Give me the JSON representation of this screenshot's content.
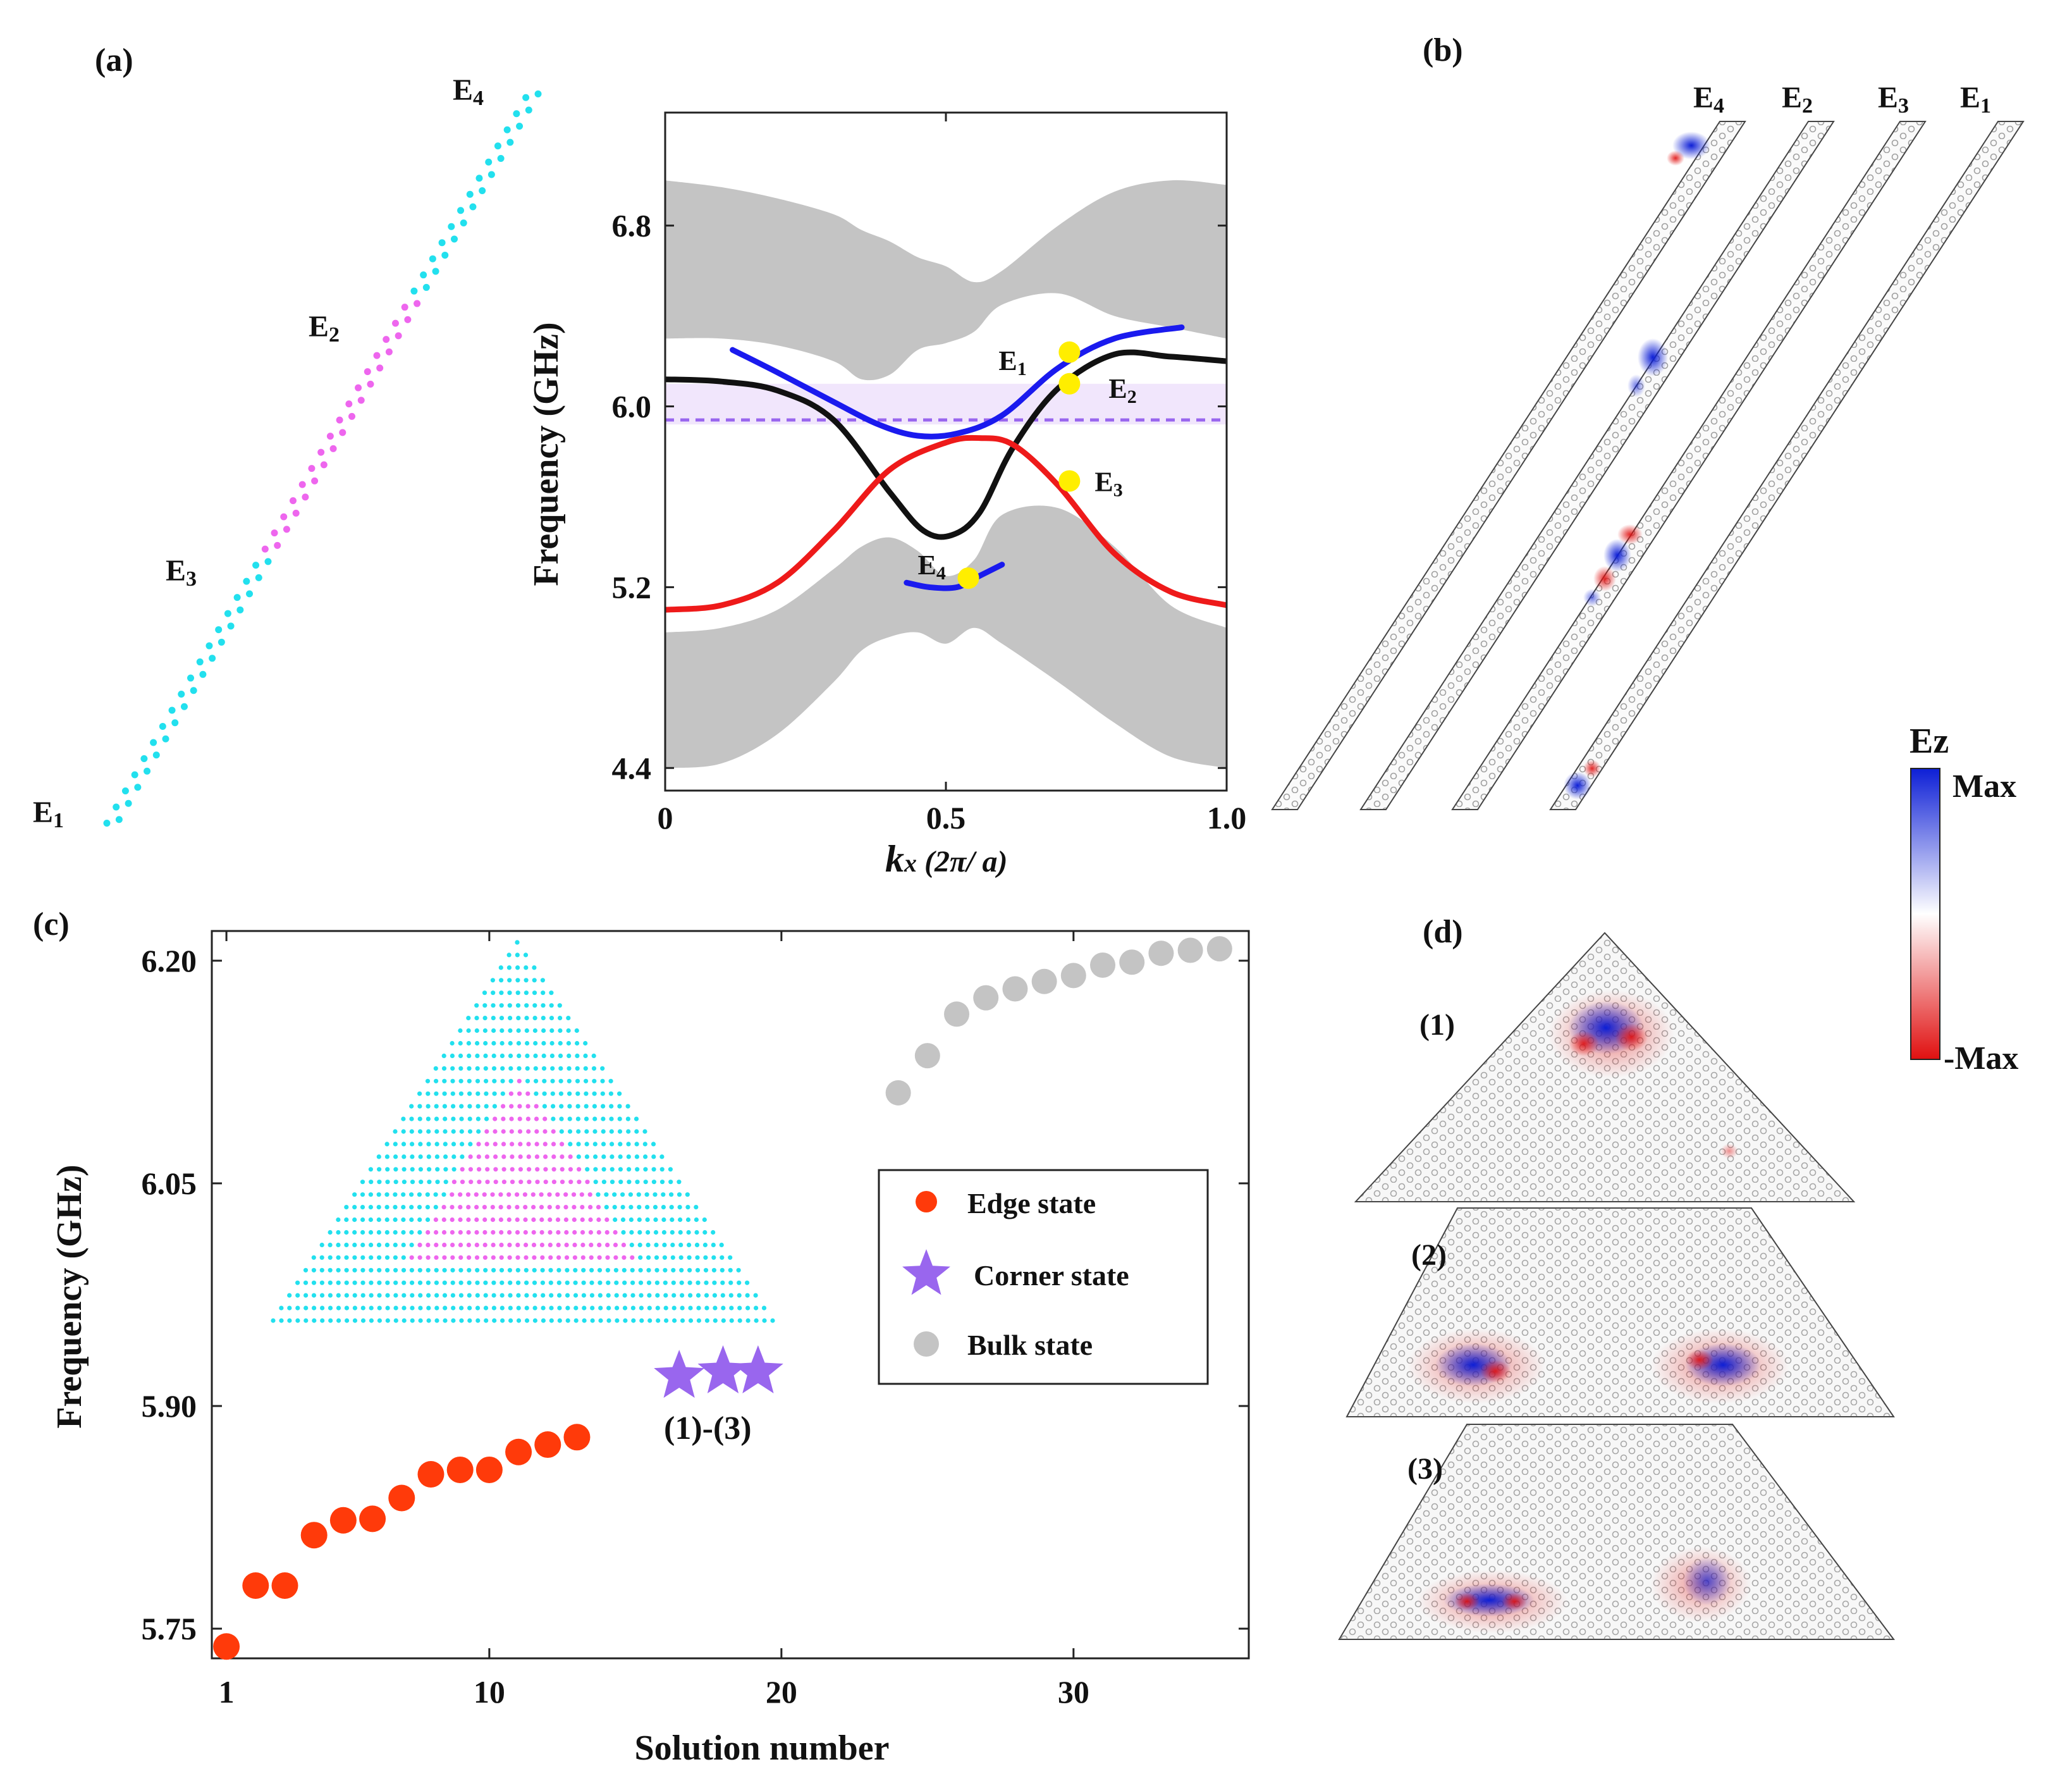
{
  "panels": {
    "a": "(a)",
    "b": "(b)",
    "c": "(c)",
    "d": "(d)"
  },
  "colors": {
    "cyan": "#22e0ee",
    "magenta": "#ee66ee",
    "blue": "#1a1aee",
    "black": "#111111",
    "red": "#ee1a1a",
    "gray": "#c4c4c4",
    "yellow": "#ffee00",
    "purple": "#9966ee",
    "orange_red": "#ff3a0a",
    "band": "#efe2fb",
    "field_blue": "#0d1fd6",
    "field_red": "#e01010"
  },
  "panel_a": {
    "ribbon_labels": [
      {
        "main": "E",
        "sub": "4"
      },
      {
        "main": "E",
        "sub": "2"
      },
      {
        "main": "E",
        "sub": "3"
      },
      {
        "main": "E",
        "sub": "1"
      }
    ]
  },
  "chart_data": [
    {
      "type": "line",
      "title": "",
      "xlabel": {
        "var": "k",
        "sub": "x",
        "unit": " (2π/ a)"
      },
      "ylabel": "Frequency (GHz)",
      "xlim": [
        0,
        1.0
      ],
      "ylim": [
        4.3,
        7.3
      ],
      "xticks": [
        "0",
        "0.5",
        "1.0"
      ],
      "xtick_values": [
        0,
        0.5,
        1.0
      ],
      "yticks": [
        "4.4",
        "5.2",
        "6.0",
        "6.8"
      ],
      "ytick_values": [
        4.4,
        5.2,
        6.0,
        6.8
      ],
      "bulk_bands": [
        {
          "name": "upper bulk",
          "x": [
            0,
            0.1,
            0.2,
            0.3,
            0.35,
            0.4,
            0.45,
            0.5,
            0.55,
            0.6,
            0.7,
            0.8,
            0.9,
            1.0
          ],
          "lower": [
            6.3,
            6.3,
            6.27,
            6.2,
            6.12,
            6.14,
            6.25,
            6.28,
            6.33,
            6.45,
            6.5,
            6.4,
            6.35,
            6.3
          ],
          "upper": [
            7.0,
            6.97,
            6.92,
            6.85,
            6.78,
            6.73,
            6.66,
            6.62,
            6.55,
            6.6,
            6.8,
            6.95,
            7.0,
            6.98
          ]
        },
        {
          "name": "lower bulk",
          "x": [
            0,
            0.1,
            0.2,
            0.3,
            0.35,
            0.4,
            0.45,
            0.5,
            0.55,
            0.6,
            0.7,
            0.8,
            0.9,
            1.0
          ],
          "lower": [
            4.4,
            4.42,
            4.55,
            4.78,
            4.92,
            4.98,
            5.0,
            4.95,
            5.02,
            4.95,
            4.78,
            4.6,
            4.45,
            4.4
          ],
          "upper": [
            5.0,
            5.02,
            5.1,
            5.28,
            5.38,
            5.42,
            5.36,
            5.25,
            5.32,
            5.52,
            5.55,
            5.38,
            5.12,
            5.02
          ]
        }
      ],
      "gap_band": {
        "ymin": 5.92,
        "ymax": 6.1
      },
      "dashed_line": {
        "y": 5.94
      },
      "series": [
        {
          "name": "E1 edge (blue, upper)",
          "color": "blue",
          "x": [
            0.12,
            0.2,
            0.3,
            0.38,
            0.45,
            0.52,
            0.6,
            0.7,
            0.8,
            0.92
          ],
          "y": [
            6.25,
            6.15,
            6.02,
            5.92,
            5.87,
            5.88,
            5.96,
            6.17,
            6.3,
            6.35
          ]
        },
        {
          "name": "E2 edge (black)",
          "color": "black",
          "x": [
            0,
            0.1,
            0.2,
            0.3,
            0.4,
            0.46,
            0.51,
            0.56,
            0.62,
            0.7,
            0.8,
            0.9,
            1.0
          ],
          "y": [
            6.12,
            6.11,
            6.07,
            5.94,
            5.62,
            5.45,
            5.43,
            5.53,
            5.82,
            6.08,
            6.23,
            6.22,
            6.2
          ]
        },
        {
          "name": "E3 edge (red)",
          "color": "red",
          "x": [
            0,
            0.1,
            0.2,
            0.3,
            0.4,
            0.5,
            0.56,
            0.62,
            0.7,
            0.8,
            0.9,
            1.0
          ],
          "y": [
            5.1,
            5.12,
            5.22,
            5.45,
            5.72,
            5.84,
            5.86,
            5.83,
            5.65,
            5.35,
            5.18,
            5.12
          ]
        },
        {
          "name": "E4 edge (blue, lower)",
          "color": "blue",
          "x": [
            0.43,
            0.47,
            0.52,
            0.56,
            0.6
          ],
          "y": [
            5.22,
            5.2,
            5.2,
            5.25,
            5.3
          ]
        }
      ],
      "markers": [
        {
          "label": "E",
          "sub": "1",
          "x": 0.72,
          "y": 6.24
        },
        {
          "label": "E",
          "sub": "2",
          "x": 0.72,
          "y": 6.1
        },
        {
          "label": "E",
          "sub": "3",
          "x": 0.72,
          "y": 5.67
        },
        {
          "label": "E",
          "sub": "4",
          "x": 0.54,
          "y": 5.24
        }
      ]
    },
    {
      "type": "scatter",
      "title": "",
      "xlabel": "Solution number",
      "ylabel": "Frequency (GHz)",
      "xlim": [
        0.5,
        36
      ],
      "ylim": [
        5.73,
        6.22
      ],
      "xticks": [
        "1",
        "10",
        "20",
        "30"
      ],
      "xtick_values": [
        1,
        10,
        20,
        30
      ],
      "yticks": [
        "5.75",
        "5.90",
        "6.05",
        "6.20"
      ],
      "ytick_values": [
        5.75,
        5.9,
        6.05,
        6.2
      ],
      "series": [
        {
          "name": "Edge state",
          "marker": "circle",
          "color": "orange_red",
          "x": [
            1,
            2,
            3,
            4,
            5,
            6,
            7,
            8,
            9,
            10,
            11,
            12,
            13
          ],
          "y": [
            5.738,
            5.779,
            5.779,
            5.813,
            5.823,
            5.824,
            5.838,
            5.854,
            5.857,
            5.857,
            5.869,
            5.874,
            5.879
          ]
        },
        {
          "name": "Corner state",
          "marker": "star",
          "color": "purple",
          "x": [
            16.5,
            18,
            19.2
          ],
          "y": [
            5.92,
            5.923,
            5.923
          ]
        },
        {
          "name": "Bulk state",
          "marker": "circle",
          "color": "gray",
          "x": [
            24,
            25,
            26,
            27,
            28,
            29,
            30,
            31,
            32,
            33,
            34,
            35
          ],
          "y": [
            6.111,
            6.136,
            6.164,
            6.175,
            6.181,
            6.186,
            6.19,
            6.197,
            6.199,
            6.205,
            6.207,
            6.208
          ]
        }
      ],
      "legend": {
        "placement": "right",
        "entries": [
          "Edge state",
          "Corner state",
          "Bulk state"
        ]
      },
      "annotation": "(1)-(3)"
    }
  ],
  "panel_b": {
    "stripe_labels": [
      {
        "main": "E",
        "sub": "4"
      },
      {
        "main": "E",
        "sub": "2"
      },
      {
        "main": "E",
        "sub": "3"
      },
      {
        "main": "E",
        "sub": "1"
      }
    ]
  },
  "colorbar": {
    "title": "Ez",
    "max_label": "Max",
    "min_label": "-Max"
  },
  "panel_d": {
    "labels": [
      "(1)",
      "(2)",
      "(3)"
    ]
  }
}
